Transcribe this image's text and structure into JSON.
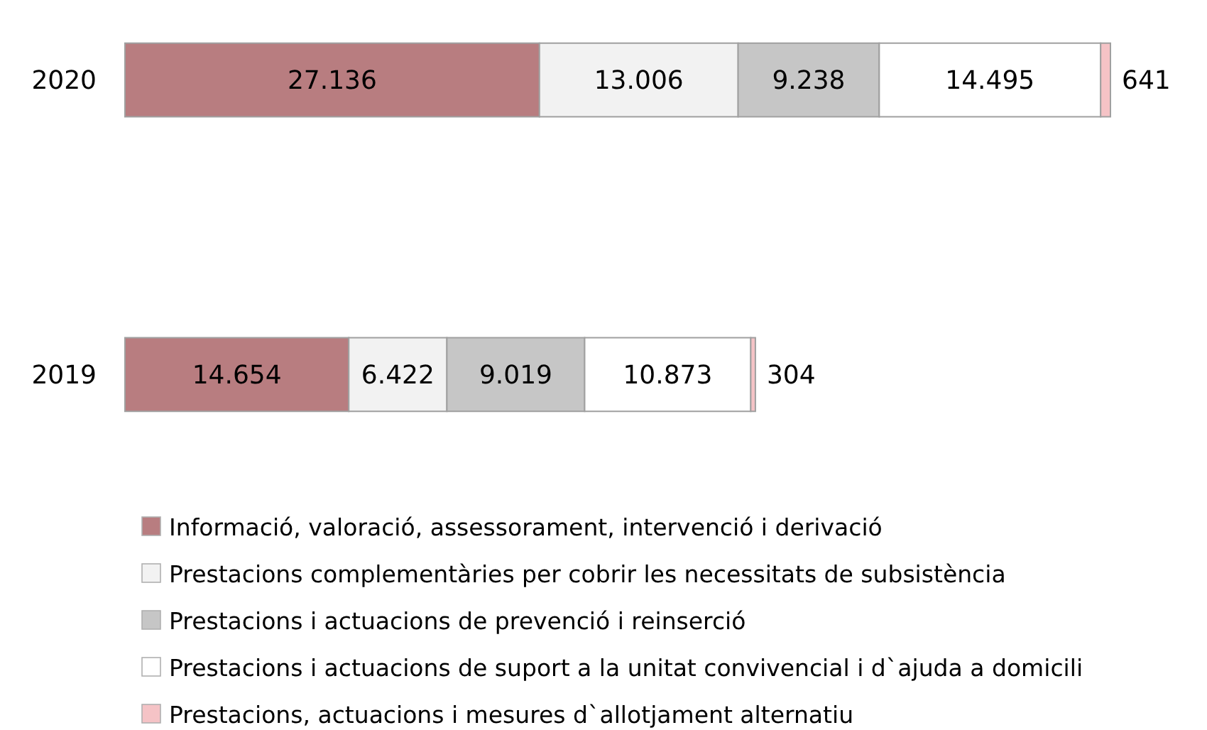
{
  "chart_data": {
    "type": "bar",
    "orientation": "horizontal",
    "stacked": true,
    "data_labels": true,
    "legend": "bottom",
    "categories": [
      "2020",
      "2019"
    ],
    "series": [
      {
        "name": "Informació, valoració, assessorament, intervenció i derivació",
        "color": "#b87d80",
        "values": [
          27136,
          14654
        ],
        "value_labels": [
          "27.136",
          "14.654"
        ]
      },
      {
        "name": "Prestacions complementàries per cobrir les necessitats de subsistència",
        "color": "#f2f2f2",
        "values": [
          13006,
          6422
        ],
        "value_labels": [
          "13.006",
          "6.422"
        ]
      },
      {
        "name": "Prestacions i actuacions de prevenció i reinserció",
        "color": "#c6c6c6",
        "values": [
          9238,
          9019
        ],
        "value_labels": [
          "9.238",
          "9.019"
        ]
      },
      {
        "name": "Prestacions i actuacions de suport a la unitat convivencial i d`ajuda a domicili",
        "color": "#ffffff",
        "values": [
          14495,
          10873
        ],
        "value_labels": [
          "14.495",
          "10.873"
        ]
      },
      {
        "name": "Prestacions, actuacions i mesures d`allotjament alternatiu",
        "color": "#f5c3c6",
        "values": [
          641,
          304
        ],
        "value_labels": [
          "641",
          "304"
        ]
      }
    ]
  }
}
